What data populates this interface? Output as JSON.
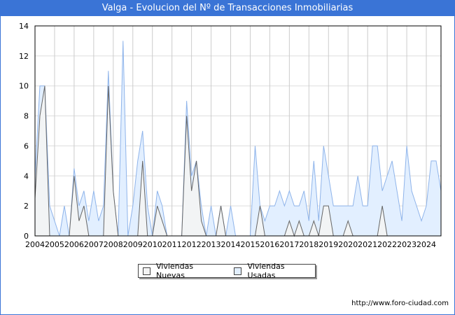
{
  "title": "Valga - Evolucion del Nº de Transacciones Inmobiliarias",
  "url": "http://www.foro-ciudad.com",
  "chart_data": {
    "type": "area",
    "title": "Valga - Evolucion del Nº de Transacciones Inmobiliarias",
    "xlabel": "",
    "ylabel": "",
    "x_start": 2004,
    "x_step": 0.25,
    "xlim": [
      2004,
      2024.75
    ],
    "ylim": [
      0,
      14
    ],
    "x_ticks": [
      "2004",
      "2005",
      "2006",
      "2007",
      "2008",
      "2009",
      "2010",
      "2011",
      "2012",
      "2013",
      "2014",
      "2015",
      "2016",
      "2017",
      "2018",
      "2019",
      "2020",
      "2021",
      "2022",
      "2023",
      "2024"
    ],
    "y_ticks": [
      "0",
      "2",
      "4",
      "6",
      "8",
      "10",
      "12",
      "14"
    ],
    "grid": true,
    "legend_position": "bottom",
    "series": [
      {
        "name": "Viviendas Nuevas",
        "color": "#666666",
        "fill": "#f4f4f4",
        "values": [
          2.5,
          8,
          10,
          0,
          0,
          0,
          0,
          0,
          4,
          1,
          2,
          0,
          0,
          0,
          0,
          10,
          3,
          0,
          0,
          0,
          0,
          0,
          5,
          0,
          0,
          2,
          1,
          0,
          0,
          0,
          0,
          8,
          3,
          5,
          1,
          0,
          0,
          0,
          2,
          0,
          0,
          0,
          0,
          0,
          0,
          0,
          2,
          0,
          0,
          0,
          0,
          0,
          1,
          0,
          1,
          0,
          0,
          1,
          0,
          2,
          2,
          0,
          0,
          0,
          1,
          0,
          0,
          0,
          0,
          0,
          0,
          2,
          0,
          0,
          0,
          0,
          0,
          0,
          0,
          0,
          0,
          0,
          0,
          0
        ]
      },
      {
        "name": "Viviendas Usadas",
        "color": "#8fb4ea",
        "fill": "#e2efff",
        "values": [
          4,
          10,
          10,
          2,
          1,
          0,
          2,
          0,
          4.5,
          2,
          3,
          1,
          3,
          1,
          2,
          11,
          3,
          0,
          13,
          0,
          2,
          5,
          7,
          2,
          0,
          3,
          2,
          0,
          0,
          0,
          0,
          9,
          4,
          5,
          2,
          0,
          2,
          0,
          2,
          0,
          2,
          0,
          0,
          0,
          0,
          6,
          2,
          1,
          2,
          2,
          3,
          2,
          3,
          2,
          2,
          3,
          1,
          5,
          1,
          6,
          4,
          2,
          2,
          2,
          2,
          2,
          4,
          2,
          2,
          6,
          6,
          3,
          4,
          5,
          3,
          1,
          6,
          3,
          2,
          1,
          2,
          5,
          5,
          3
        ]
      }
    ]
  }
}
